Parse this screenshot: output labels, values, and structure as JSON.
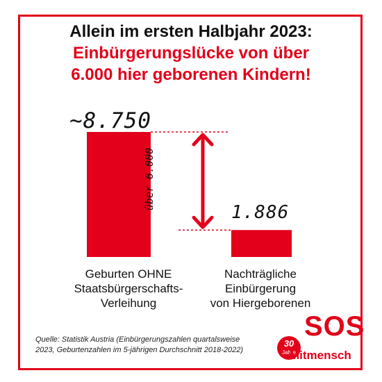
{
  "title": {
    "line1": "Allein im ersten Halbjahr 2023:",
    "line2": "Einbürgerungslücke von über",
    "line3": "6.000 hier geborenen Kindern!"
  },
  "chart_data": {
    "type": "bar",
    "title": "Allein im ersten Halbjahr 2023: Einbürgerungslücke von über 6.000 hier geborenen Kindern!",
    "categories": [
      "Geburten OHNE Staatsbürgerschafts-Verleihung",
      "Nachträgliche Einbürgerung von Hiergeborenen"
    ],
    "values": [
      8750,
      1886
    ],
    "value_labels": [
      "~8.750",
      "1.886"
    ],
    "annotation": "über 6.000",
    "xlabel": "",
    "ylabel": "",
    "ylim": [
      0,
      8750
    ],
    "grid": false,
    "legend": "none"
  },
  "categories_display": {
    "cat1": [
      "Geburten OHNE",
      "Staatsbürgerschafts-",
      "Verleihung"
    ],
    "cat2": [
      "Nachträgliche",
      "Einbürgerung",
      "von Hiergeborenen"
    ]
  },
  "source": {
    "line1": "Quelle: Statistik Austria (Einbürgerungszahlen quartalsweise",
    "line2": "2023, Geburtenzahlen im 5-jährigen Durchschnitt 2018-2022)"
  },
  "logo": {
    "badge_number": "30",
    "badge_text": "Jahre",
    "name": "SOS",
    "subname": "Mitmensch"
  },
  "colors": {
    "accent": "#e2001a",
    "text": "#111111"
  }
}
